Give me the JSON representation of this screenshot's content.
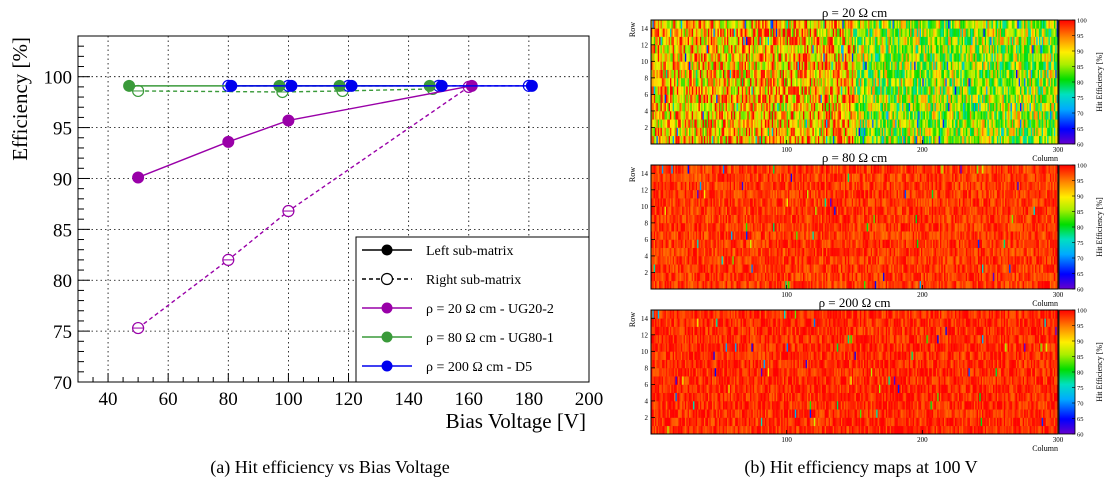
{
  "caption_a": "(a)  Hit efficiency vs Bias Voltage",
  "caption_b": "(b)  Hit efficiency maps at 100 V",
  "chart_data": [
    {
      "type": "line",
      "xlabel": "Bias Voltage [V]",
      "ylabel": "Efficiency [%]",
      "xlim": [
        30,
        200
      ],
      "ylim": [
        70,
        104
      ],
      "xticks": [
        40,
        60,
        80,
        100,
        120,
        140,
        160,
        180,
        200
      ],
      "yticks": [
        70,
        75,
        80,
        85,
        90,
        95,
        100
      ],
      "grid": true,
      "legend_position": "bottom-right",
      "legend": [
        {
          "label": "Left sub-matrix",
          "style": "solid-filled",
          "color": "#000000"
        },
        {
          "label": "Right sub-matrix",
          "style": "dashed-open",
          "color": "#000000"
        },
        {
          "label": "ρ =   20 Ω cm - UG20-2",
          "style": "solid-filled",
          "color": "#9900a8"
        },
        {
          "label": "ρ =   80 Ω cm - UG80-1",
          "style": "solid-filled",
          "color": "#3a9a3a"
        },
        {
          "label": "ρ = 200 Ω cm - D5",
          "style": "solid-filled",
          "color": "#0000ee"
        }
      ],
      "series": [
        {
          "sample": "UG20-2",
          "submatrix": "left",
          "color": "#9900a8",
          "dashed": false,
          "x": [
            50,
            80,
            100,
            161
          ],
          "y": [
            90.1,
            93.6,
            95.7,
            99.1
          ]
        },
        {
          "sample": "UG20-2",
          "submatrix": "right",
          "color": "#9900a8",
          "dashed": true,
          "x": [
            50,
            80,
            100,
            160
          ],
          "y": [
            75.3,
            82.0,
            86.8,
            99.0
          ]
        },
        {
          "sample": "UG80-1",
          "submatrix": "left",
          "color": "#3a9a3a",
          "dashed": false,
          "x": [
            47,
            97,
            117,
            147
          ],
          "y": [
            99.1,
            99.1,
            99.1,
            99.1
          ]
        },
        {
          "sample": "UG80-1",
          "submatrix": "right",
          "color": "#3a9a3a",
          "dashed": true,
          "x": [
            50,
            98,
            118,
            148
          ],
          "y": [
            98.6,
            98.5,
            98.6,
            98.8
          ]
        },
        {
          "sample": "D5",
          "submatrix": "left",
          "color": "#0000ee",
          "dashed": false,
          "x": [
            81,
            101,
            121,
            151,
            181
          ],
          "y": [
            99.1,
            99.1,
            99.1,
            99.1,
            99.1
          ]
        },
        {
          "sample": "D5",
          "submatrix": "right",
          "color": "#0000ee",
          "dashed": true,
          "x": [
            80,
            100,
            120,
            150,
            180
          ],
          "y": [
            99.1,
            99.1,
            99.1,
            99.1,
            99.1
          ]
        }
      ]
    },
    {
      "type": "heatmap",
      "title": "ρ = 20 Ω cm",
      "xlabel": "Column",
      "ylabel": "Row",
      "zlabel": "Hit Efficiency [%]",
      "xlim": [
        0,
        300
      ],
      "ylim": [
        0,
        15
      ],
      "zlim": [
        60,
        100
      ],
      "xticks": [
        100,
        200,
        300
      ],
      "yticks": [
        2,
        4,
        6,
        8,
        10,
        12,
        14
      ],
      "zticks": [
        60,
        65,
        70,
        75,
        80,
        85,
        90,
        95,
        100
      ],
      "region_typical_efficiency": [
        {
          "columns": [
            0,
            150
          ],
          "typical_efficiency_pct": 94
        },
        {
          "columns": [
            150,
            300
          ],
          "typical_efficiency_pct": 88
        }
      ]
    },
    {
      "type": "heatmap",
      "title": "ρ = 80 Ω cm",
      "xlabel": "Column",
      "ylabel": "Row",
      "zlabel": "Hit Efficiency [%]",
      "xlim": [
        0,
        300
      ],
      "ylim": [
        0,
        15
      ],
      "zlim": [
        60,
        100
      ],
      "xticks": [
        100,
        200,
        300
      ],
      "yticks": [
        2,
        4,
        6,
        8,
        10,
        12,
        14
      ],
      "zticks": [
        60,
        65,
        70,
        75,
        80,
        85,
        90,
        95,
        100
      ],
      "region_typical_efficiency": [
        {
          "columns": [
            0,
            300
          ],
          "typical_efficiency_pct": 98.5
        }
      ]
    },
    {
      "type": "heatmap",
      "title": "ρ = 200 Ω cm",
      "xlabel": "Column",
      "ylabel": "Row",
      "zlabel": "Hit Efficiency [%]",
      "xlim": [
        0,
        300
      ],
      "ylim": [
        0,
        15
      ],
      "zlim": [
        60,
        100
      ],
      "xticks": [
        100,
        200,
        300
      ],
      "yticks": [
        2,
        4,
        6,
        8,
        10,
        12,
        14
      ],
      "zticks": [
        60,
        65,
        70,
        75,
        80,
        85,
        90,
        95,
        100
      ],
      "region_typical_efficiency": [
        {
          "columns": [
            0,
            300
          ],
          "typical_efficiency_pct": 99
        }
      ]
    }
  ]
}
